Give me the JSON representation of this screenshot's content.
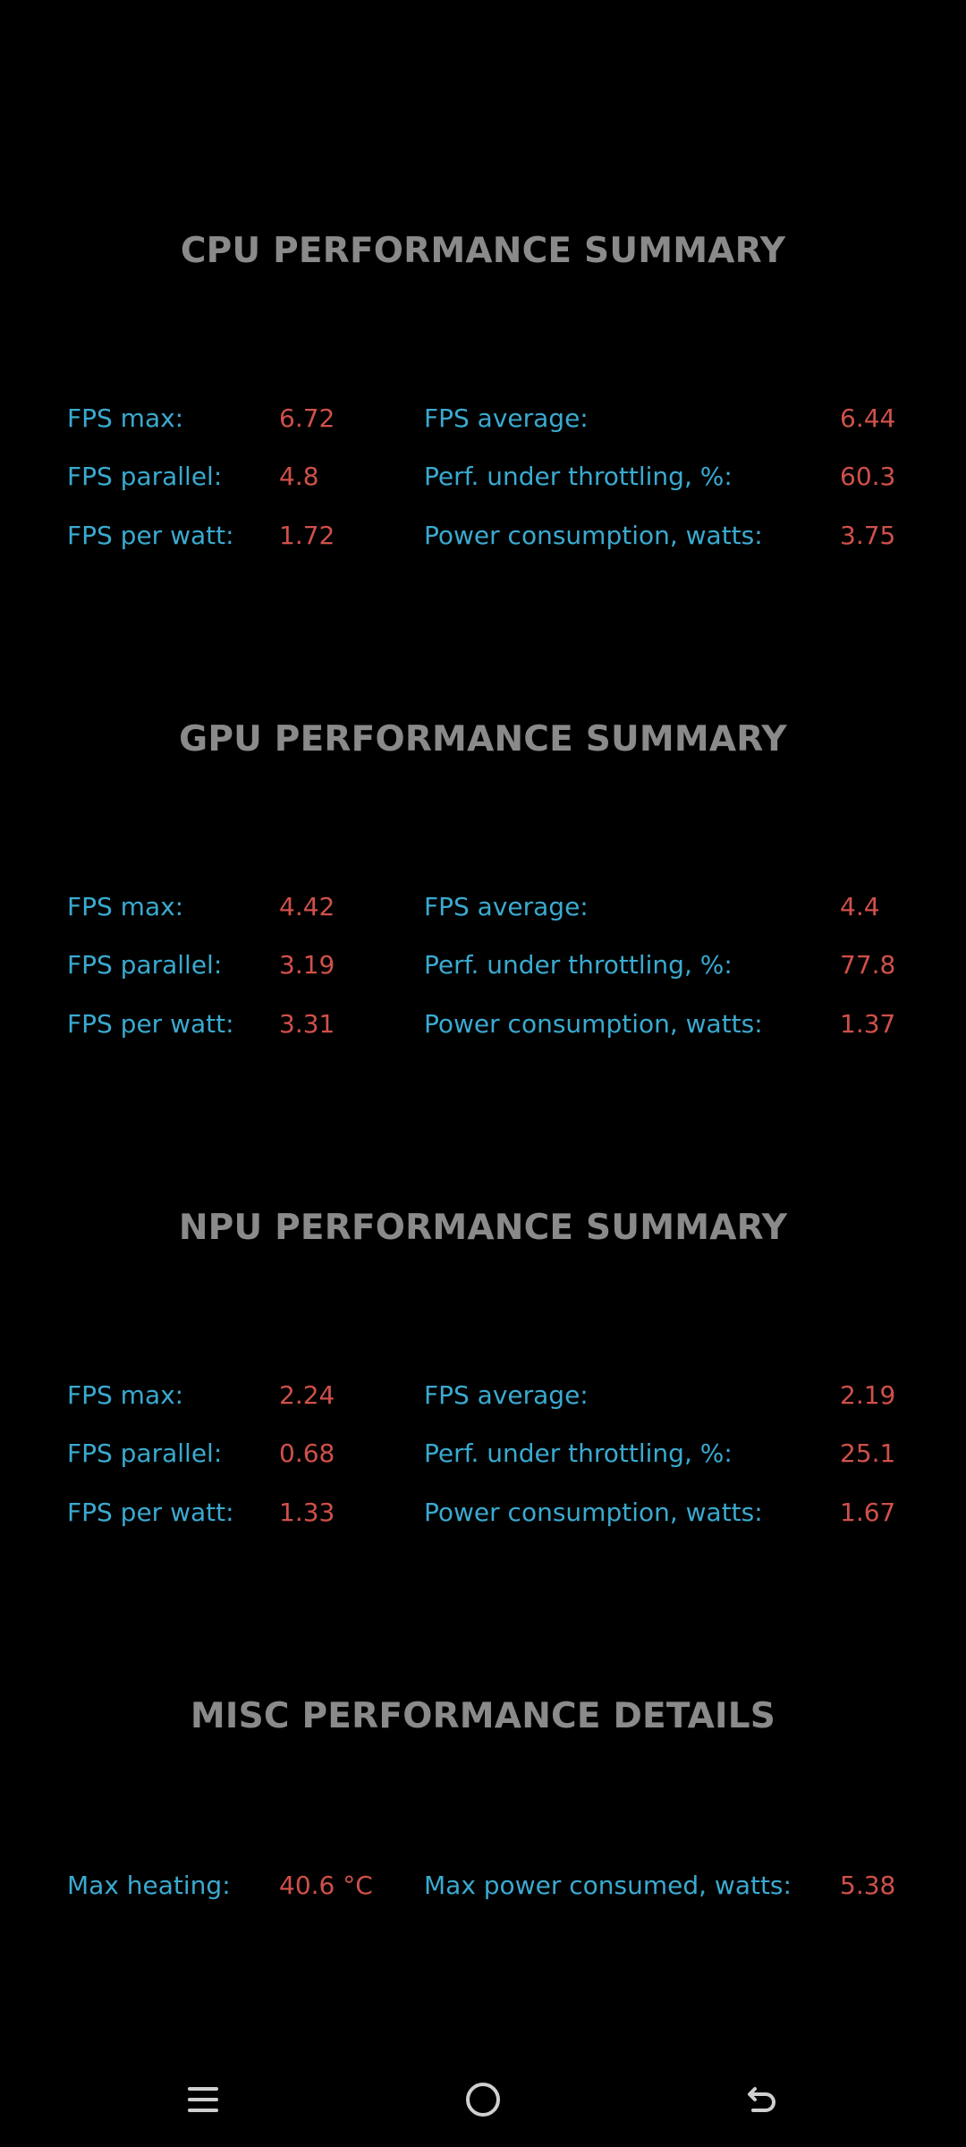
{
  "sections": [
    {
      "title": "CPU PERFORMANCE SUMMARY",
      "rows": [
        {
          "l1": "FPS max:",
          "v1": "6.72",
          "l2": "FPS average:",
          "v2": "6.44"
        },
        {
          "l1": "FPS parallel:",
          "v1": "4.8",
          "l2": "Perf. under throttling, %:",
          "v2": "60.3"
        },
        {
          "l1": "FPS per watt:",
          "v1": "1.72",
          "l2": "Power consumption, watts:",
          "v2": "3.75"
        }
      ]
    },
    {
      "title": "GPU PERFORMANCE SUMMARY",
      "rows": [
        {
          "l1": "FPS max:",
          "v1": "4.42",
          "l2": "FPS average:",
          "v2": "4.4"
        },
        {
          "l1": "FPS parallel:",
          "v1": "3.19",
          "l2": "Perf. under throttling, %:",
          "v2": "77.8"
        },
        {
          "l1": "FPS per watt:",
          "v1": "3.31",
          "l2": "Power consumption, watts:",
          "v2": "1.37"
        }
      ]
    },
    {
      "title": "NPU PERFORMANCE SUMMARY",
      "rows": [
        {
          "l1": "FPS max:",
          "v1": "2.24",
          "l2": "FPS average:",
          "v2": "2.19"
        },
        {
          "l1": "FPS parallel:",
          "v1": "0.68",
          "l2": "Perf. under throttling, %:",
          "v2": "25.1"
        },
        {
          "l1": "FPS per watt:",
          "v1": "1.33",
          "l2": "Power consumption, watts:",
          "v2": "1.67"
        }
      ]
    }
  ],
  "misc": {
    "title": "MISC PERFORMANCE DETAILS",
    "row": {
      "l1": "Max heating:",
      "v1": "40.6 °C",
      "l2": "Max power consumed, watts:",
      "v2": "5.38"
    }
  },
  "navbar": {
    "menu_icon": "menu-icon",
    "home_icon": "home-icon",
    "back_icon": "back-icon",
    "icon_color": "#cfcfcf"
  },
  "colors": {
    "background": "#000000",
    "title": "#8a8a8a",
    "label": "#3aaad0",
    "value": "#d0504a"
  }
}
